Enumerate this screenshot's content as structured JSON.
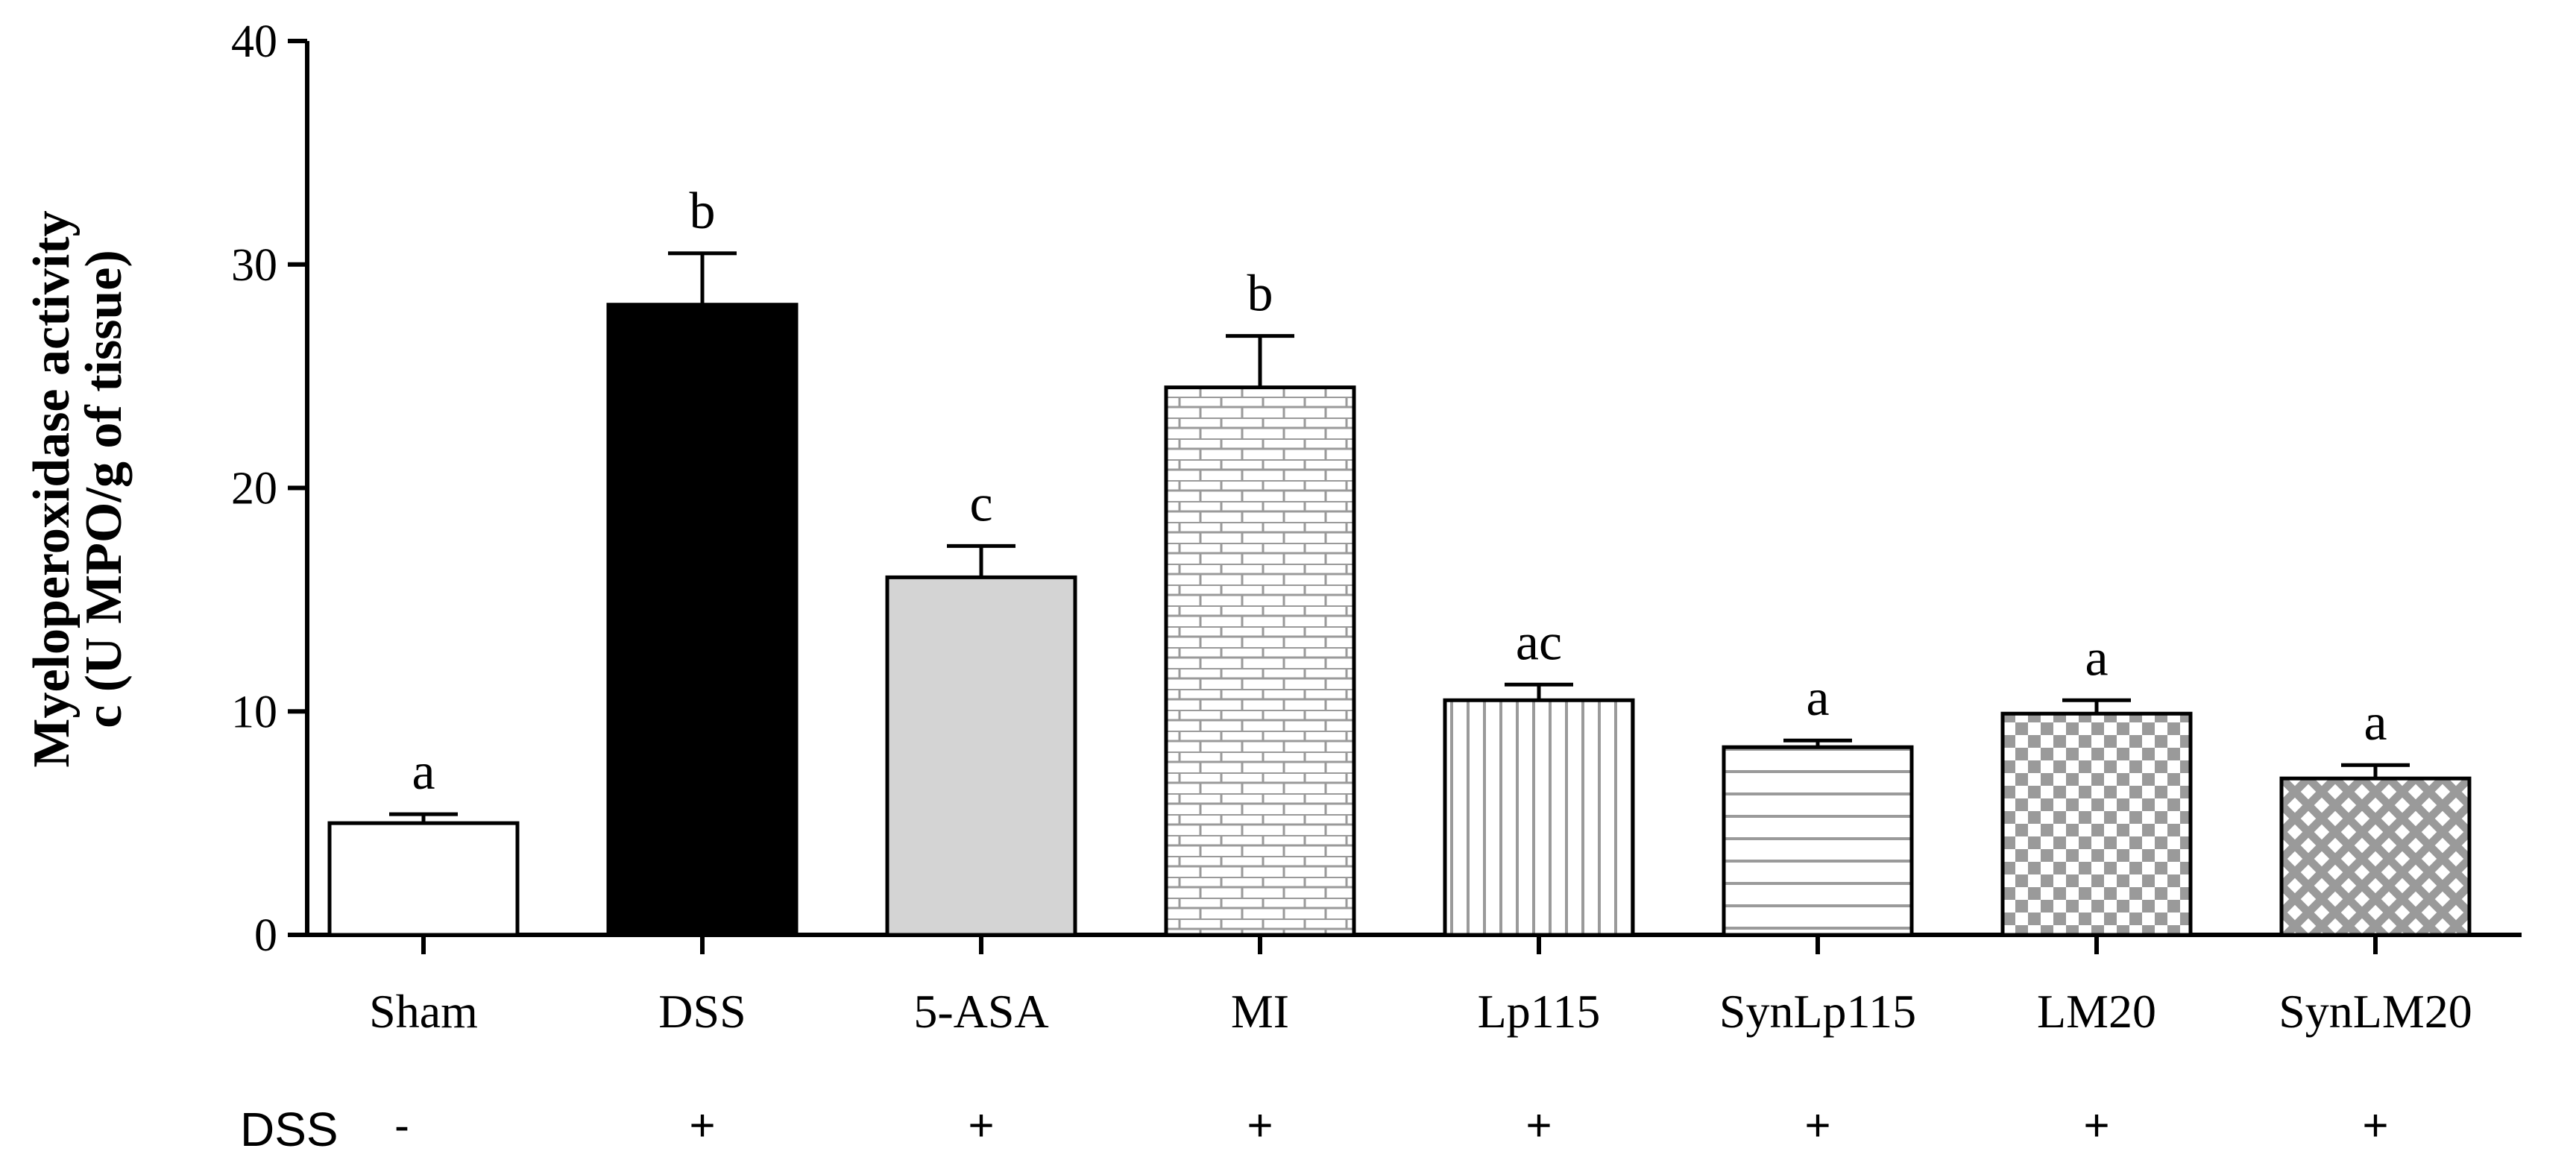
{
  "chart_data": {
    "type": "bar",
    "title": "",
    "xlabel": "",
    "ylabel_line1": "Myeloperoxidase activity",
    "ylabel_line2": "c (U MPO/g of tissue)",
    "ylim": [
      0,
      40
    ],
    "yticks": [
      0,
      10,
      20,
      30,
      40
    ],
    "categories": [
      "Sham",
      "DSS",
      "5-ASA",
      "MI",
      "Lp115",
      "SynLp115",
      "LM20",
      "SynLM20"
    ],
    "values": [
      5.0,
      28.2,
      16.0,
      24.5,
      10.5,
      8.4,
      9.9,
      7.0
    ],
    "errors": [
      0.4,
      2.3,
      1.4,
      2.3,
      0.7,
      0.3,
      0.6,
      0.6
    ],
    "significance": [
      "a",
      "b",
      "c",
      "b",
      "ac",
      "a",
      "a",
      "a"
    ],
    "fills": [
      "white",
      "black",
      "lightgray",
      "brick",
      "vertical-lines",
      "horizontal-lines",
      "checker",
      "diagonal-cross"
    ],
    "dss_row_label": "DSS",
    "dss_treatment": [
      "-",
      "+",
      "+",
      "+",
      "+",
      "+",
      "+",
      "+"
    ]
  },
  "colors": {
    "axis": "#000000",
    "bar_outline": "#000000",
    "dss_bar": "#000000",
    "asa_bar": "#d4d4d4",
    "pattern_gray": "#9a9a9a",
    "background": "#ffffff"
  }
}
